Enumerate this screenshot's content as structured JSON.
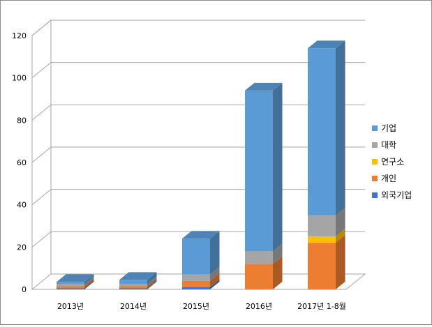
{
  "chart_data": {
    "type": "bar",
    "stacked": true,
    "three_d": true,
    "categories": [
      "2013년",
      "2014년",
      "2015년",
      "2016년",
      "2017년 1-8월"
    ],
    "series": [
      {
        "name": "외국기업",
        "color": "#4472c4",
        "values": [
          0.5,
          0.5,
          1,
          0,
          0
        ]
      },
      {
        "name": "개인",
        "color": "#ed7d31",
        "values": [
          1,
          1,
          3,
          12,
          22
        ]
      },
      {
        "name": "연구소",
        "color": "#ffc000",
        "values": [
          0,
          0,
          0,
          0,
          3
        ]
      },
      {
        "name": "대학",
        "color": "#a5a5a5",
        "values": [
          1,
          1,
          3,
          6,
          10
        ]
      },
      {
        "name": "기업",
        "color": "#5b9bd5",
        "values": [
          1,
          2,
          17,
          76,
          79
        ]
      }
    ],
    "legend_order": [
      "기업",
      "대학",
      "연구소",
      "개인",
      "외국기업"
    ],
    "yticks": [
      0,
      20,
      40,
      60,
      80,
      100,
      120
    ],
    "ylim": [
      0,
      120
    ],
    "grid": true,
    "legend_position": "right"
  }
}
